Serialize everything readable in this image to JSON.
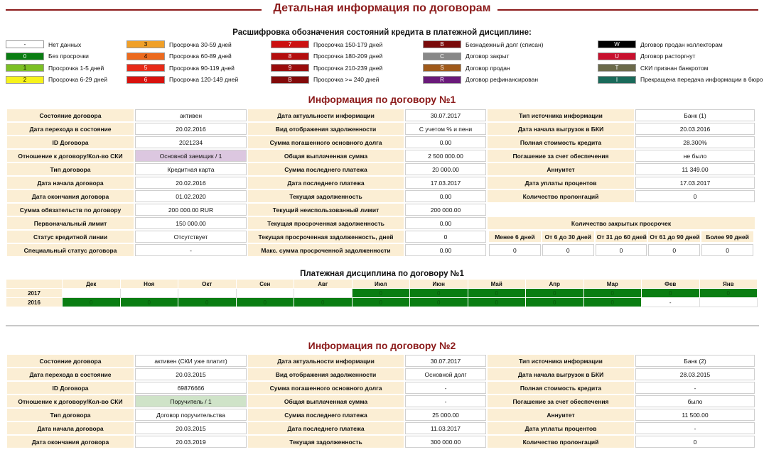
{
  "page_title": "Детальная информация по договорам",
  "legend": {
    "title": "Расшифровка обозначения состояний кредита в платежной дисциплине:",
    "items": [
      {
        "code": "-",
        "label": "Нет данных",
        "color": "#ffffff"
      },
      {
        "code": "0",
        "label": "Без просрочки",
        "color": "#0a7d12"
      },
      {
        "code": "1",
        "label": "Просрочка 1-5 дней",
        "color": "#7cc024"
      },
      {
        "code": "2",
        "label": "Просрочка 6-29 дней",
        "color": "#f6f21c"
      },
      {
        "code": "3",
        "label": "Просрочка 30-59 дней",
        "color": "#f0a028"
      },
      {
        "code": "4",
        "label": "Просрочка 60-89 дней",
        "color": "#ec6a1e"
      },
      {
        "code": "5",
        "label": "Просрочка 90-119 дней",
        "color": "#e82a18"
      },
      {
        "code": "6",
        "label": "Просрочка 120-149 дней",
        "color": "#d8120e"
      },
      {
        "code": "7",
        "label": "Просрочка 150-179 дней",
        "color": "#cc1010"
      },
      {
        "code": "8",
        "label": "Просрочка 180-209 дней",
        "color": "#b40e0e"
      },
      {
        "code": "9",
        "label": "Просрочка 210-239 дней",
        "color": "#9a0c0c"
      },
      {
        "code": "B",
        "label": "Просрочка >= 240 дней",
        "color": "#820a0a"
      },
      {
        "code": "B",
        "label": "Безнадежный долг (списан)",
        "color": "#7a0a0a"
      },
      {
        "code": "C",
        "label": "Договор закрыт",
        "color": "#888888"
      },
      {
        "code": "S",
        "label": "Договор продан",
        "color": "#a05a1a"
      },
      {
        "code": "R",
        "label": "Договор рефинансирован",
        "color": "#6a1a7a"
      },
      {
        "code": "W",
        "label": "Договор продан коллекторам",
        "color": "#000000"
      },
      {
        "code": "U",
        "label": "Договор расторгнут",
        "color": "#c8102e"
      },
      {
        "code": "T",
        "label": "СКИ признан банкротом",
        "color": "#6b6a4a"
      },
      {
        "code": "I",
        "label": "Прекращена передача информации в бюро",
        "color": "#1a6a5a"
      }
    ]
  },
  "contract1": {
    "title": "Информация по договору №1",
    "rows": [
      [
        "Состояние договора",
        "активен",
        "Дата актуальности информации",
        "30.07.2017",
        "Тип источника информации",
        "Банк   (1)"
      ],
      [
        "Дата перехода в состояние",
        "20.02.2016",
        "Вид отображения задолженности",
        "С учетом % и пени",
        "Дата начала выгрузок в БКИ",
        "20.03.2016"
      ],
      [
        "ID Договора",
        "2021234",
        "Сумма погашенного основного долга",
        "0.00",
        "Полная стоимость кредита",
        "28.300%"
      ],
      [
        "Отношение к договору/Кол-во СКИ",
        "Основной заемщик / 1",
        "Общая выплаченная сумма",
        "2 500 000.00",
        "Погашение за счет обеспечения",
        "не было"
      ],
      [
        "Тип договора",
        "Кредитная карта",
        "Сумма последнего платежа",
        "20 000.00",
        "Аннуитет",
        "11 349.00"
      ],
      [
        "Дата начала договора",
        "20.02.2016",
        "Дата последнего платежа",
        "17.03.2017",
        "Дата уплаты процентов",
        "17.03.2017"
      ],
      [
        "Дата окончания договора",
        "01.02.2020",
        "Текущая задолженность",
        "0.00",
        "Количество пролонгаций",
        "0"
      ],
      [
        "Сумма обязательств по договору",
        "200 000.00  RUR",
        "Текущий неиспользованный лимит",
        "200 000.00"
      ],
      [
        "Первоначальный лимит",
        "150 000.00",
        "Текущая просроченная задолженность",
        "0.00"
      ],
      [
        "Статус кредитной линии",
        "Отсутствует",
        "Текущая просроченная задолженность, дней",
        "0"
      ],
      [
        "Специальный статус договора",
        "-",
        "Макс. сумма просроченной задолженности",
        "0.00"
      ]
    ],
    "closed_overdue_title": "Количество закрытых просрочек",
    "closed_overdue_headers": [
      "Менее 6 дней",
      "От 6 до 30 дней",
      "От 31 до 60 дней",
      "От 61 до 90 дней",
      "Более 90 дней"
    ],
    "closed_overdue_values": [
      "0",
      "0",
      "0",
      "0",
      "0"
    ]
  },
  "discipline": {
    "title": "Платежная дисциплина по договору №1",
    "months": [
      "Дек",
      "Ноя",
      "Окт",
      "Сен",
      "Авг",
      "Июл",
      "Июн",
      "Май",
      "Апр",
      "Мар",
      "Фев",
      "Янв"
    ],
    "years": [
      {
        "year": "2017",
        "cells": [
          "",
          "",
          "",
          "",
          "",
          "0",
          "0",
          "0",
          "0",
          "0",
          "0",
          "0"
        ]
      },
      {
        "year": "2016",
        "cells": [
          "0",
          "0",
          "0",
          "0",
          "0",
          "0",
          "0",
          "0",
          "0",
          "0",
          "-",
          ""
        ]
      }
    ]
  },
  "contract2": {
    "title": "Информация по договору №2",
    "rows": [
      [
        "Состояние договора",
        "активен (СКИ уже платит)",
        "Дата актуальности информации",
        "30.07.2017",
        "Тип источника информации",
        "Банк   (2)"
      ],
      [
        "Дата перехода в состояние",
        "20.03.2015",
        "Вид отображения задолженности",
        "Основной долг",
        "Дата начала выгрузок в БКИ",
        "28.03.2015"
      ],
      [
        "ID Договора",
        "69876666",
        "Сумма погашенного основного долга",
        "-",
        "Полная стоимость кредита",
        "-"
      ],
      [
        "Отношение к договору/Кол-во СКИ",
        "Поручитель / 1",
        "Общая выплаченная сумма",
        "-",
        "Погашение за счет обеспечения",
        "было"
      ],
      [
        "Тип договора",
        "Договор поручительства",
        "Сумма последнего платежа",
        "25 000.00",
        "Аннуитет",
        "11 500.00"
      ],
      [
        "Дата начала договора",
        "20.03.2015",
        "Дата последнего платежа",
        "11.03.2017",
        "Дата уплаты процентов",
        "-"
      ],
      [
        "Дата окончания договора",
        "20.03.2019",
        "Текущая задолженность",
        "300 000.00",
        "Количество пролонгаций",
        "0"
      ]
    ]
  }
}
